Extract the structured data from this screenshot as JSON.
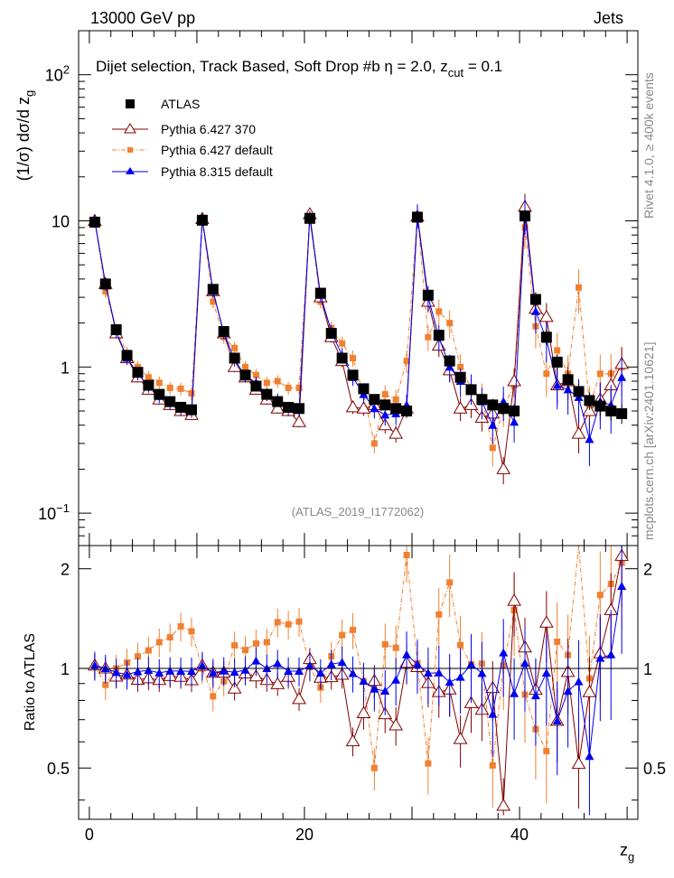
{
  "header": {
    "left": "13000 GeV pp",
    "right": "Jets"
  },
  "side_labels": {
    "rivet": "Rivet 4.1.0, ≥ 400k events",
    "mcplots": "mcplots.cern.ch [arXiv:2401.10621]"
  },
  "chart_data": {
    "type": "scatter",
    "title_main": "Dijet selection, Track Based, Soft Drop #b   η = 2.0, z",
    "title_sub": "cut",
    "title_tail": " = 0.1",
    "analysis_tag": "(ATLAS_2019_I1772062)",
    "ylabel": {
      "base": "(1/σ) dσ/d z",
      "sub": "g"
    },
    "xlabel": {
      "base": "z",
      "sub": "g"
    },
    "ratio_ylabel": "Ratio to ATLAS",
    "xlim": [
      -1,
      51
    ],
    "ylim": [
      0.06,
      200
    ],
    "ratio_ylim": [
      0.35,
      2.35
    ],
    "yscale": "log",
    "x_ticks": [
      "0",
      "20",
      "40"
    ],
    "y_ticks": [
      {
        "value": 0.1,
        "base": "10",
        "exp": "−1"
      },
      {
        "value": 1,
        "base": "1",
        "exp": ""
      },
      {
        "value": 10,
        "base": "10",
        "exp": ""
      },
      {
        "value": 100,
        "base": "10",
        "exp": "2"
      }
    ],
    "ratio_ticks": [
      "0.5",
      "1",
      "2"
    ],
    "x": [
      0.5,
      1.5,
      2.5,
      3.5,
      4.5,
      5.5,
      6.5,
      7.5,
      8.5,
      9.5,
      10.5,
      11.5,
      12.5,
      13.5,
      14.5,
      15.5,
      16.5,
      17.5,
      18.5,
      19.5,
      20.5,
      21.5,
      22.5,
      23.5,
      24.5,
      25.5,
      26.5,
      27.5,
      28.5,
      29.5,
      30.5,
      31.5,
      32.5,
      33.5,
      34.5,
      35.5,
      36.5,
      37.5,
      38.5,
      39.5,
      40.5,
      41.5,
      42.5,
      43.5,
      44.5,
      45.5,
      46.5,
      47.5,
      48.5,
      49.5
    ],
    "series": [
      {
        "name": "ATLAS",
        "style": "square",
        "color": "#000000",
        "values": [
          9.8,
          3.7,
          1.8,
          1.2,
          0.92,
          0.75,
          0.65,
          0.58,
          0.53,
          0.51,
          10.1,
          3.4,
          1.75,
          1.15,
          0.88,
          0.74,
          0.65,
          0.58,
          0.53,
          0.52,
          10.4,
          3.2,
          1.7,
          1.15,
          0.88,
          0.71,
          0.6,
          0.55,
          0.52,
          0.5,
          10.6,
          3.1,
          1.65,
          1.1,
          0.85,
          0.7,
          0.6,
          0.55,
          0.52,
          0.5,
          10.8,
          2.9,
          1.6,
          1.08,
          0.82,
          0.68,
          0.59,
          0.54,
          0.5,
          0.48
        ]
      },
      {
        "name": "Pythia 6.427 370",
        "style": "open-triangle",
        "color": "#800000",
        "values": [
          10.0,
          3.7,
          1.7,
          1.15,
          0.85,
          0.7,
          0.6,
          0.55,
          0.5,
          0.47,
          10.3,
          3.3,
          1.7,
          1.0,
          0.85,
          0.7,
          0.6,
          0.52,
          0.5,
          0.42,
          11.1,
          3.0,
          1.6,
          1.1,
          0.53,
          0.52,
          0.55,
          0.4,
          0.35,
          0.52,
          10.7,
          2.8,
          1.4,
          0.95,
          0.52,
          0.55,
          0.45,
          0.48,
          0.2,
          0.8,
          12.5,
          2.5,
          2.2,
          0.75,
          0.8,
          0.35,
          0.5,
          0.6,
          0.75,
          1.05
        ]
      },
      {
        "name": "Pythia 6.427 default",
        "style": "small-square",
        "color": "#f08030",
        "values": [
          10.0,
          3.3,
          1.8,
          1.25,
          1.0,
          0.85,
          0.78,
          0.72,
          0.71,
          0.66,
          10.1,
          2.8,
          1.6,
          1.35,
          1.0,
          0.88,
          0.78,
          0.8,
          0.72,
          0.72,
          10.5,
          2.8,
          1.85,
          1.45,
          1.15,
          0.65,
          0.3,
          0.65,
          0.6,
          1.1,
          11.0,
          1.6,
          2.4,
          2.0,
          1.0,
          0.72,
          0.62,
          0.28,
          0.53,
          0.75,
          9.0,
          1.9,
          0.9,
          1.3,
          0.9,
          3.5,
          0.55,
          0.9,
          0.9,
          1.0
        ]
      },
      {
        "name": "Pythia 8.315 default",
        "style": "triangle",
        "color": "#0000ee",
        "values": [
          10.0,
          3.7,
          1.75,
          1.15,
          0.9,
          0.74,
          0.63,
          0.57,
          0.52,
          0.5,
          10.3,
          3.3,
          1.72,
          1.12,
          0.87,
          0.78,
          0.65,
          0.6,
          0.52,
          0.51,
          10.6,
          3.1,
          1.75,
          1.2,
          0.85,
          0.65,
          0.52,
          0.47,
          0.48,
          0.55,
          10.9,
          3.0,
          1.6,
          1.0,
          0.8,
          0.72,
          0.58,
          0.4,
          0.58,
          0.42,
          11.2,
          2.4,
          1.55,
          0.75,
          0.7,
          0.62,
          0.32,
          0.58,
          0.55,
          0.85
        ]
      }
    ]
  }
}
